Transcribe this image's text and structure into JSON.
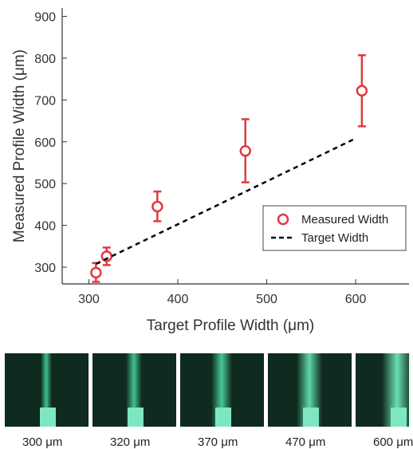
{
  "chart_data": {
    "type": "scatter",
    "xlabel": "Target Profile Width (μm)",
    "ylabel": "Measured Profile Width (μm)",
    "xlim": [
      270,
      660
    ],
    "ylim": [
      260,
      920
    ],
    "x_ticks": [
      300,
      400,
      500,
      600
    ],
    "y_ticks": [
      300,
      400,
      500,
      600,
      700,
      800,
      900
    ],
    "grid": false,
    "legend_position": "right",
    "series": [
      {
        "name": "Measured Width",
        "style": "open-circle-with-errorbars",
        "color": "#e03a3e",
        "points": [
          {
            "x": 308,
            "y": 287,
            "yerr_low": 265,
            "yerr_high": 310
          },
          {
            "x": 320,
            "y": 326,
            "yerr_low": 305,
            "yerr_high": 347
          },
          {
            "x": 377,
            "y": 445,
            "yerr_low": 410,
            "yerr_high": 481
          },
          {
            "x": 476,
            "y": 578,
            "yerr_low": 503,
            "yerr_high": 654
          },
          {
            "x": 607,
            "y": 722,
            "yerr_low": 637,
            "yerr_high": 807
          }
        ]
      },
      {
        "name": "Target Width",
        "style": "dashed-line",
        "color": "#000000",
        "points": [
          {
            "x": 308,
            "y": 308
          },
          {
            "x": 597,
            "y": 605
          }
        ]
      }
    ]
  },
  "photos": [
    {
      "label": "300 μm",
      "glow_color": "#3fc08f"
    },
    {
      "label": "320 μm",
      "glow_color": "#3fc08f"
    },
    {
      "label": "370 μm",
      "glow_color": "#46c995"
    },
    {
      "label": "470 μm",
      "glow_color": "#5fd8a8"
    },
    {
      "label": "600 μm",
      "glow_color": "#6ddfb2"
    }
  ]
}
